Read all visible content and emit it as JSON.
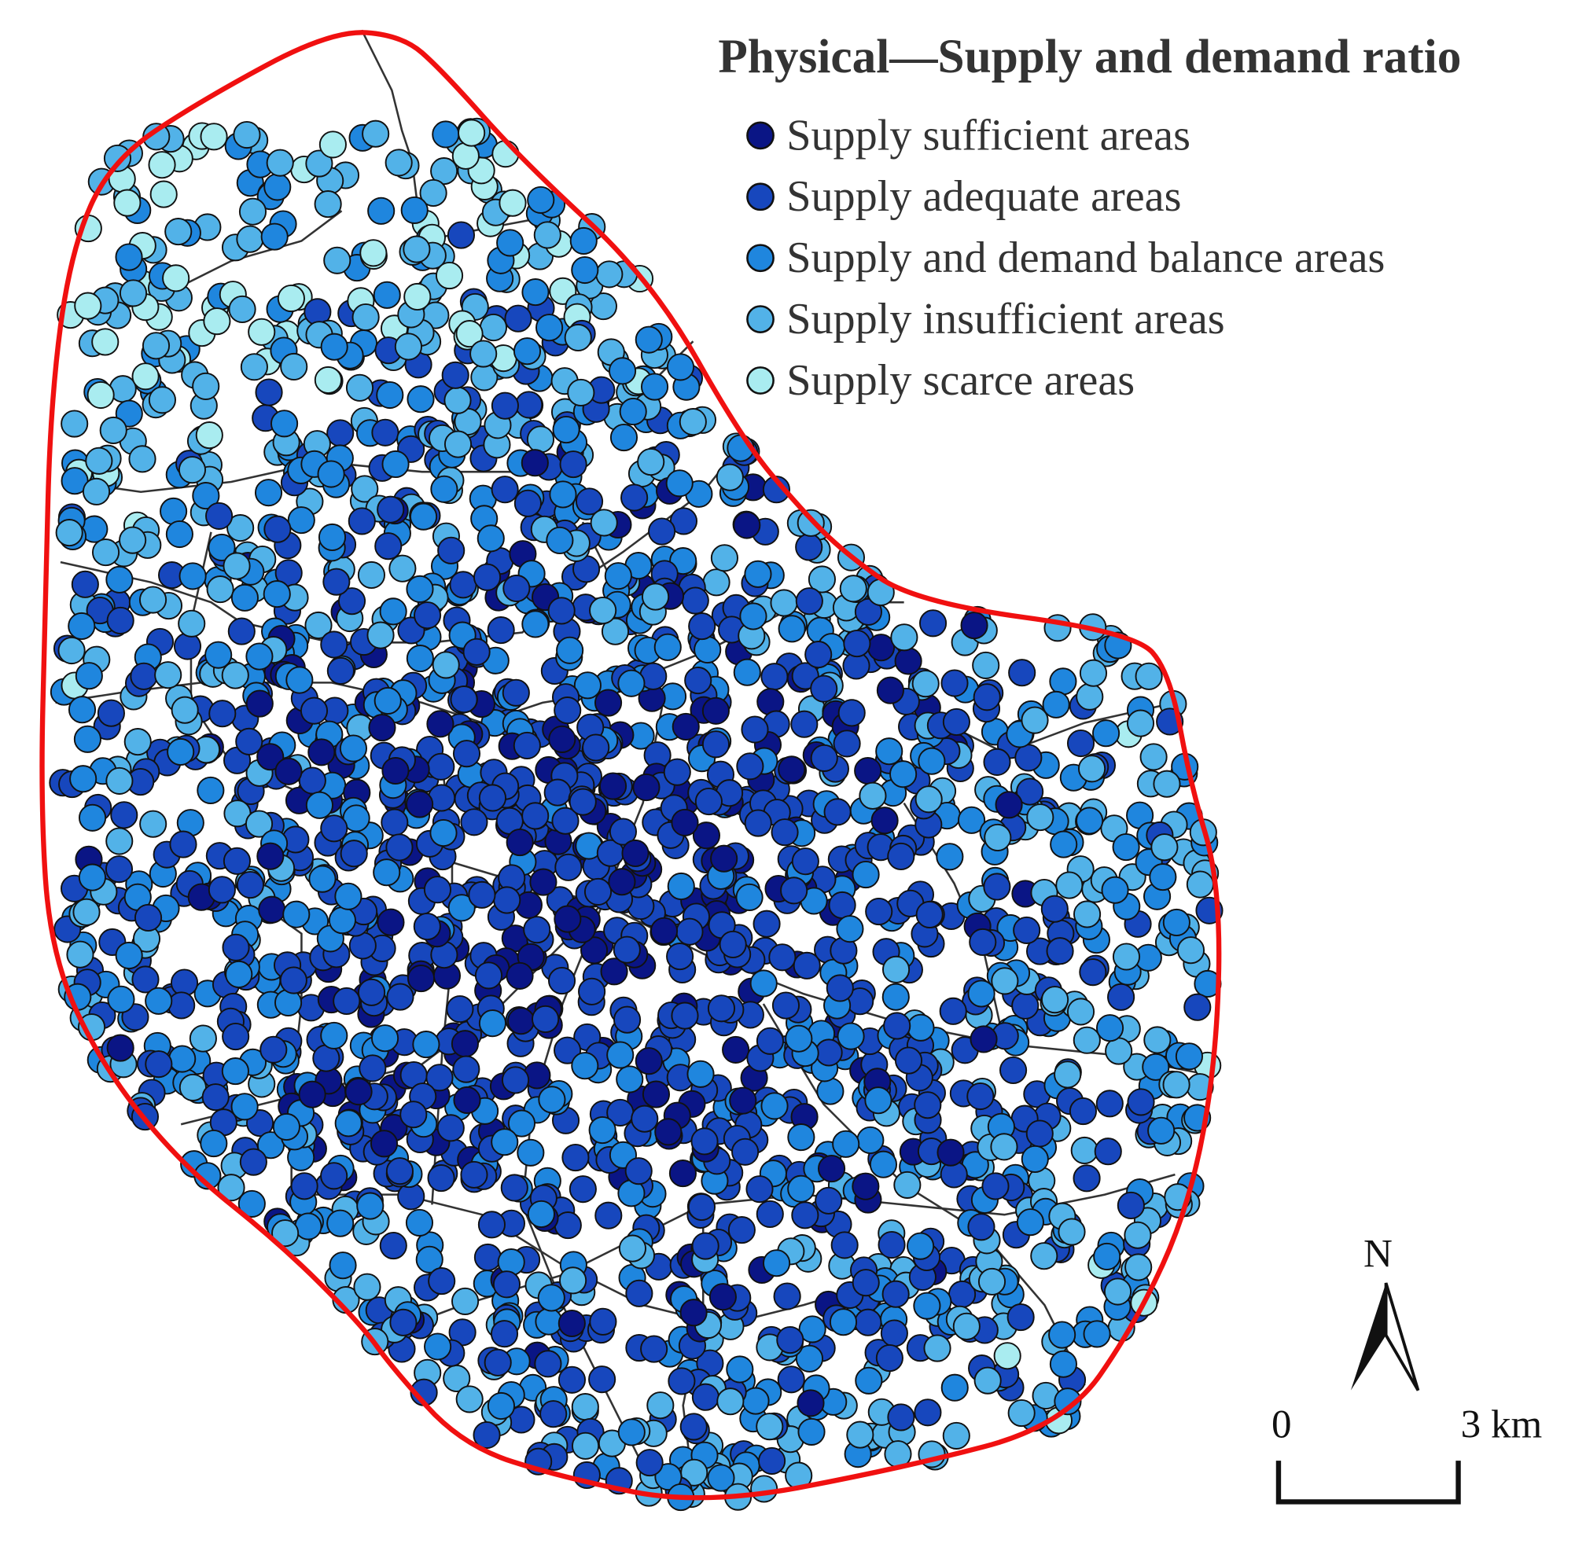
{
  "title": "Physical—Supply and demand ratio",
  "legend": {
    "items": [
      {
        "label": "Supply sufficient areas",
        "color": "#0a1585"
      },
      {
        "label": "Supply adequate areas",
        "color": "#1747bd"
      },
      {
        "label": "Supply and demand balance areas",
        "color": "#1f86de"
      },
      {
        "label": "Supply insufficient areas",
        "color": "#52b2e8"
      },
      {
        "label": "Supply scarce areas",
        "color": "#a9ecf0"
      }
    ]
  },
  "north": "N",
  "scale": {
    "start": "0",
    "end": "3 km"
  }
}
